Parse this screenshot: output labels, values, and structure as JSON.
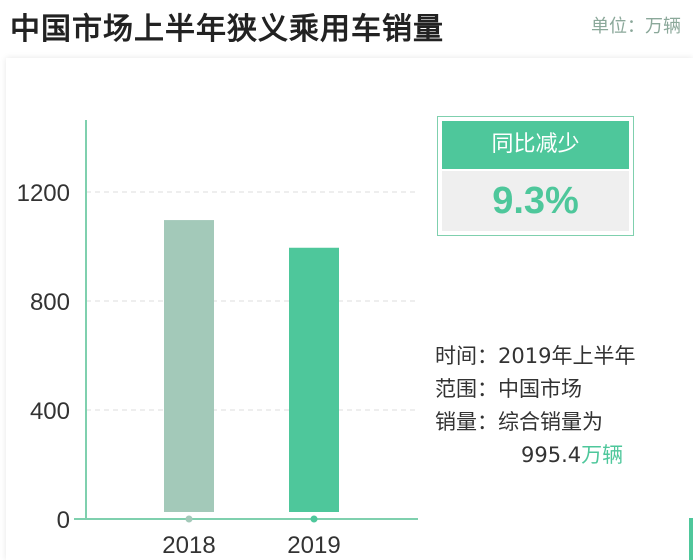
{
  "title": "中国市场上半年狭义乘用车销量",
  "unit_label": "单位：万辆",
  "badge": {
    "label": "同比减少",
    "value": "9.3%"
  },
  "info": {
    "time_label": "时间：",
    "time_value": "2019年上半年",
    "range_label": "范围：",
    "range_value": "中国市场",
    "sales_label": "销量：",
    "sales_value_prefix": "综合销量为",
    "sales_value": "995.4",
    "sales_unit": "万辆"
  },
  "colors": {
    "accent": "#4ec79b",
    "bar_2018": "#a3c9b9",
    "bar_2019": "#4ec79b",
    "axis": "#7fd0ae"
  },
  "chart_data": {
    "type": "bar",
    "categories": [
      "2018",
      "2019"
    ],
    "values": [
      1097,
      995.4
    ],
    "yticks": [
      0,
      400,
      800,
      1200
    ],
    "ylim": [
      0,
      1200
    ],
    "grid": true,
    "xlabel": "",
    "ylabel": "",
    "title": ""
  }
}
